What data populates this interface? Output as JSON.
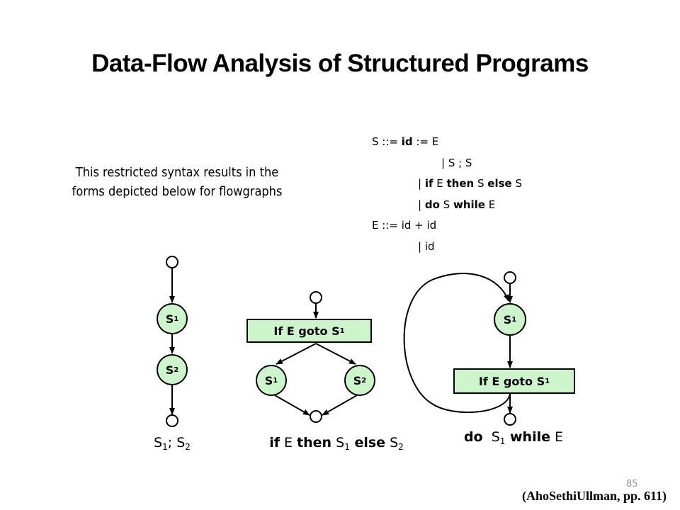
{
  "title": "Data-Flow Analysis of Structured Programs",
  "intro": [
    "This restricted syntax results in the",
    "forms depicted below for flowgraphs"
  ],
  "grammar": [
    [
      {
        "t": "S ::= ",
        "b": false
      },
      {
        "t": "id",
        "b": true
      },
      {
        "t": " := E",
        "b": false
      }
    ],
    [
      {
        "t": "| S ; S",
        "b": false
      }
    ],
    [
      {
        "t": "| ",
        "b": false
      },
      {
        "t": "if",
        "b": true
      },
      {
        "t": " E ",
        "b": false
      },
      {
        "t": "then",
        "b": true
      },
      {
        "t": " S ",
        "b": false
      },
      {
        "t": "else",
        "b": true
      },
      {
        "t": " S",
        "b": false
      }
    ],
    [
      {
        "t": "| ",
        "b": false
      },
      {
        "t": "do",
        "b": true
      },
      {
        "t": " S ",
        "b": false
      },
      {
        "t": "while",
        "b": true
      },
      {
        "t": " E",
        "b": false
      }
    ],
    [
      {
        "t": "E ::= id + id",
        "b": false
      }
    ],
    [
      {
        "t": "| id",
        "b": false
      }
    ]
  ],
  "nodes": {
    "s": "S",
    "one": "1",
    "two": "2",
    "if_box": "If E goto S"
  },
  "captions": {
    "seq": {
      "a": "S",
      "a_sub": "1",
      "sep": "; ",
      "b": "S",
      "b_sub": "2"
    },
    "ifelse": {
      "kw1": "if",
      "e": " E ",
      "kw2": "then",
      "s1": " S",
      "s1_sub": "1",
      "kw3": " else",
      "s2": " S",
      "s2_sub": "2"
    },
    "dowhile": {
      "kw1": "do",
      "s1": "  S",
      "s1_sub": "1",
      "kw2": " while",
      "e": " E"
    }
  },
  "page_number": "85",
  "citation": "(AhoSethiUllman, pp. 611)",
  "colors": {
    "node_fill": "#ccf5cc",
    "stroke": "#000000"
  }
}
